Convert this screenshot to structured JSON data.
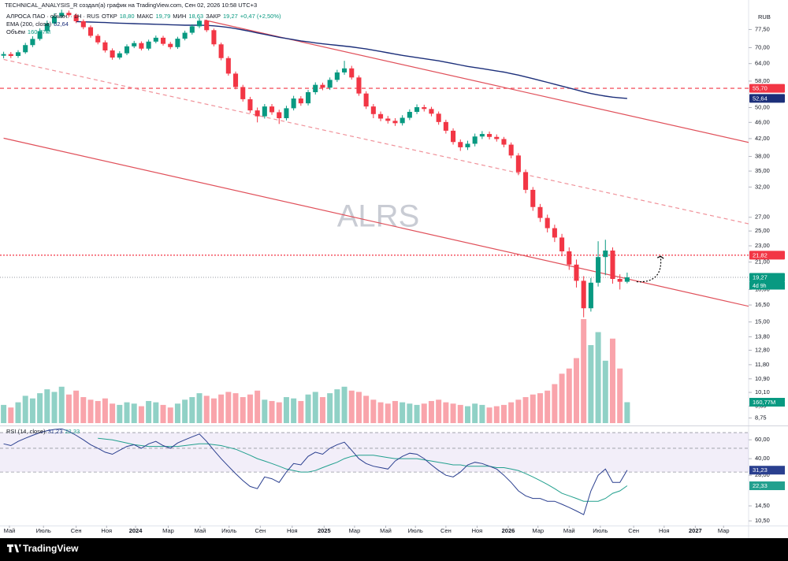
{
  "header": "TECHNICAL_ANALYSIS_R создал(а) график на TradingView.com, Сен 02, 2026 10:58 UTC+3",
  "footer": "TradingView",
  "chart_data": {
    "type": "candlestick",
    "symbol_legend": "АЛРОСА ПАО · обыкн. · 1Н · RUS",
    "ohlc_legend": [
      {
        "key": "ОТКР",
        "value": 18.8,
        "label": "18,80"
      },
      {
        "key": "МАКС",
        "value": 19.79,
        "label": "19,79"
      },
      {
        "key": "МИН",
        "value": 18.63,
        "label": "18,63"
      },
      {
        "key": "ЗАКР",
        "value": 19.27,
        "label": "19,27"
      }
    ],
    "change": "+0,47 (+2,50%)",
    "watermark": "ALRS",
    "currency": "RUB",
    "xlim": [
      -0.5,
      102.75
    ],
    "xticks": [
      {
        "value": 0.8,
        "label": "Май"
      },
      {
        "value": 5.5,
        "label": "Июль"
      },
      {
        "value": 10.0,
        "label": "Сен"
      },
      {
        "value": 14.2,
        "label": "Ноя"
      },
      {
        "value": 18.2,
        "label": "2024"
      },
      {
        "value": 22.7,
        "label": "Мар"
      },
      {
        "value": 27.1,
        "label": "Май"
      },
      {
        "value": 31.1,
        "label": "Июль"
      },
      {
        "value": 35.4,
        "label": "Сен"
      },
      {
        "value": 39.8,
        "label": "Ноя"
      },
      {
        "value": 44.2,
        "label": "2025"
      },
      {
        "value": 48.4,
        "label": "Мар"
      },
      {
        "value": 52.7,
        "label": "Май"
      },
      {
        "value": 56.8,
        "label": "Июль"
      },
      {
        "value": 61.0,
        "label": "Сен"
      },
      {
        "value": 65.3,
        "label": "Ноя"
      },
      {
        "value": 69.6,
        "label": "2026"
      },
      {
        "value": 73.7,
        "label": "Мар"
      },
      {
        "value": 78.0,
        "label": "Май"
      },
      {
        "value": 82.3,
        "label": "Июль"
      },
      {
        "value": 86.9,
        "label": "Сен"
      },
      {
        "value": 91.1,
        "label": "Ноя"
      },
      {
        "value": 95.4,
        "label": "2027"
      },
      {
        "value": 99.3,
        "label": "Мар"
      }
    ],
    "ylim": [
      8.5,
      87.5
    ],
    "log_scale": true,
    "yticks": [
      {
        "value": 77.5,
        "label": "77,50"
      },
      {
        "value": 70,
        "label": "70,00"
      },
      {
        "value": 64,
        "label": "64,00"
      },
      {
        "value": 58,
        "label": "58,00"
      },
      {
        "value": 50,
        "label": "50,00"
      },
      {
        "value": 46,
        "label": "46,00"
      },
      {
        "value": 42,
        "label": "42,00"
      },
      {
        "value": 38,
        "label": "38,00"
      },
      {
        "value": 35,
        "label": "35,00"
      },
      {
        "value": 32,
        "label": "32,00"
      },
      {
        "value": 27,
        "label": "27,00"
      },
      {
        "value": 25,
        "label": "25,00"
      },
      {
        "value": 23,
        "label": "23,00"
      },
      {
        "value": 21,
        "label": "21,00"
      },
      {
        "value": 18,
        "label": "18,00"
      },
      {
        "value": 16.5,
        "label": "16,50"
      },
      {
        "value": 15,
        "label": "15,00"
      },
      {
        "value": 13.8,
        "label": "13,80"
      },
      {
        "value": 12.8,
        "label": "12,80"
      },
      {
        "value": 11.8,
        "label": "11,80"
      },
      {
        "value": 10.9,
        "label": "10,90"
      },
      {
        "value": 10.1,
        "label": "10,10"
      },
      {
        "value": 9.35,
        "label": "9,35"
      },
      {
        "value": 8.75,
        "label": "8,75"
      }
    ],
    "up_color": "#089981",
    "down_color": "#f23645",
    "open": [
      66.9,
      67.5,
      66.8,
      68.2,
      71.0,
      73.5,
      76.8,
      80.2,
      83.5,
      85.1,
      84.0,
      81.2,
      78.5,
      74.8,
      72.1,
      68.9,
      66.2,
      67.8,
      70.5,
      71.8,
      69.6,
      72.4,
      74.0,
      71.5,
      70.2,
      73.6,
      76.1,
      78.9,
      81.4,
      77.2,
      71.3,
      66.0,
      60.5,
      56.1,
      52.4,
      49.2,
      47.6,
      50.3,
      48.7,
      47.1,
      49.8,
      52.6,
      51.2,
      54.5,
      56.8,
      55.9,
      58.4,
      60.9,
      62.3,
      59.2,
      54.1,
      50.3,
      48.2,
      47.0,
      46.4,
      45.8,
      47.2,
      48.8,
      50.1,
      49.6,
      48.3,
      46.1,
      43.9,
      41.2,
      40.0,
      40.8,
      42.5,
      43.1,
      42.4,
      41.9,
      40.6,
      38.2,
      34.8,
      31.5,
      28.6,
      26.9,
      25.4,
      24.1,
      22.3,
      20.7,
      18.9,
      16.2,
      18.7,
      21.6,
      22.4,
      19.1,
      18.8
    ],
    "high": [
      68.4,
      68.3,
      69.0,
      71.9,
      74.6,
      78.0,
      81.5,
      84.9,
      86.6,
      86.2,
      84.8,
      82.0,
      79.3,
      75.6,
      72.9,
      69.7,
      68.6,
      71.3,
      72.7,
      72.5,
      73.2,
      74.9,
      74.8,
      72.3,
      74.4,
      77.0,
      79.8,
      82.6,
      81.9,
      77.9,
      72.0,
      66.7,
      61.2,
      56.8,
      53.1,
      50.0,
      51.0,
      51.0,
      49.4,
      50.5,
      53.4,
      53.3,
      55.2,
      57.6,
      57.5,
      59.2,
      61.8,
      65.0,
      63.2,
      59.9,
      54.8,
      51.0,
      48.9,
      47.7,
      47.1,
      47.9,
      49.5,
      50.9,
      50.8,
      50.2,
      48.9,
      46.7,
      44.5,
      41.8,
      41.5,
      43.2,
      43.8,
      43.7,
      43.0,
      42.4,
      41.1,
      38.7,
      35.3,
      32.0,
      29.1,
      27.4,
      25.9,
      24.6,
      22.8,
      21.3,
      19.4,
      19.2,
      23.6,
      23.8,
      22.8,
      19.6,
      19.79
    ],
    "low": [
      65.9,
      66.0,
      66.1,
      67.6,
      70.2,
      72.8,
      76.0,
      79.4,
      82.6,
      83.1,
      80.3,
      77.6,
      74.0,
      71.3,
      68.1,
      65.4,
      65.5,
      67.1,
      69.8,
      68.9,
      68.9,
      71.7,
      70.8,
      69.4,
      69.5,
      72.9,
      75.3,
      78.1,
      76.4,
      70.5,
      65.2,
      59.8,
      55.4,
      51.7,
      48.5,
      46.0,
      47.0,
      48.0,
      45.6,
      46.5,
      49.2,
      50.5,
      50.6,
      53.8,
      55.1,
      55.2,
      57.7,
      60.1,
      58.5,
      53.4,
      49.6,
      47.1,
      46.3,
      45.7,
      45.1,
      45.2,
      46.6,
      48.2,
      48.9,
      47.6,
      45.4,
      43.2,
      40.6,
      39.2,
      39.4,
      40.2,
      41.9,
      41.8,
      41.3,
      40.0,
      37.6,
      34.2,
      30.9,
      28.0,
      26.3,
      24.8,
      23.5,
      21.7,
      20.1,
      18.2,
      15.4,
      15.9,
      18.3,
      19.5,
      18.6,
      18.0,
      18.63
    ],
    "close": [
      67.5,
      66.8,
      68.2,
      71.0,
      73.5,
      76.8,
      80.2,
      83.5,
      85.1,
      84.0,
      81.2,
      78.5,
      74.8,
      72.1,
      68.9,
      66.2,
      67.8,
      70.5,
      71.8,
      69.6,
      72.4,
      74.0,
      71.5,
      70.2,
      73.6,
      76.1,
      78.9,
      81.4,
      77.2,
      71.3,
      66.0,
      60.5,
      56.1,
      52.4,
      49.2,
      47.6,
      50.3,
      48.7,
      47.1,
      49.8,
      52.6,
      51.2,
      54.5,
      56.8,
      55.9,
      58.4,
      60.9,
      62.3,
      59.2,
      54.1,
      50.3,
      48.2,
      47.0,
      46.4,
      45.8,
      47.2,
      48.8,
      50.1,
      49.6,
      48.3,
      46.1,
      43.9,
      41.2,
      40.0,
      40.8,
      42.5,
      43.1,
      42.4,
      41.9,
      40.6,
      38.2,
      34.8,
      31.5,
      28.6,
      26.9,
      25.4,
      24.1,
      22.3,
      20.7,
      18.9,
      16.2,
      18.7,
      21.6,
      22.4,
      19.1,
      18.8,
      19.27
    ],
    "last_price": {
      "value": 19.27,
      "label": "19,27",
      "countdown": "4d 9h"
    },
    "levels": [
      {
        "value": 55.7,
        "label": "55,70",
        "color": "#f23645",
        "style": "dashed"
      },
      {
        "value": 21.82,
        "label": "21,82",
        "color": "#f23645",
        "style": "dotted"
      }
    ],
    "trendlines": [
      {
        "points": [
          [
            27.7,
            81.7
          ],
          [
            103.3,
            40.9
          ]
        ],
        "color": "#e0505a",
        "style": "solid"
      },
      {
        "points": [
          [
            0,
            42.1
          ],
          [
            103.3,
            16.3
          ]
        ],
        "color": "#e0505a",
        "style": "solid"
      },
      {
        "points": [
          [
            0,
            65.5
          ],
          [
            103.3,
            25.9
          ]
        ],
        "color": "#f0929a",
        "style": "dashed"
      }
    ],
    "forecast_arrow": {
      "from": [
        87.3,
        18.8
      ],
      "to": [
        90.6,
        21.7
      ]
    },
    "ema": {
      "name": "EMA (200, close)",
      "color": "#1c2f7a",
      "last_label": "52,64",
      "values": [
        null,
        null,
        null,
        null,
        null,
        null,
        null,
        null,
        null,
        null,
        81.0,
        80.9,
        80.8,
        80.7,
        80.6,
        80.4,
        80.3,
        80.2,
        80.1,
        80.0,
        79.9,
        79.8,
        79.7,
        79.6,
        79.5,
        79.4,
        79.4,
        79.4,
        79.3,
        79.1,
        78.8,
        78.4,
        77.9,
        77.3,
        76.7,
        76.0,
        75.4,
        74.8,
        74.2,
        73.7,
        73.2,
        72.7,
        72.3,
        71.9,
        71.5,
        71.2,
        70.9,
        70.6,
        70.3,
        69.9,
        69.5,
        69.0,
        68.5,
        68.0,
        67.5,
        67.0,
        66.6,
        66.2,
        65.8,
        65.4,
        65.0,
        64.5,
        64.0,
        63.5,
        63.0,
        62.6,
        62.2,
        61.8,
        61.4,
        61.0,
        60.5,
        60.0,
        59.4,
        58.8,
        58.2,
        57.6,
        57.0,
        56.4,
        55.8,
        55.2,
        54.6,
        54.1,
        53.7,
        53.3,
        53.0,
        52.8,
        52.64
      ]
    },
    "volume": {
      "name": "Объём",
      "ylim": [
        0,
        800
      ],
      "last_label": "160,77M",
      "values": [
        140,
        120,
        160,
        210,
        190,
        230,
        260,
        240,
        280,
        220,
        250,
        200,
        180,
        170,
        190,
        150,
        140,
        160,
        150,
        130,
        170,
        160,
        140,
        120,
        150,
        180,
        200,
        230,
        210,
        190,
        220,
        240,
        230,
        200,
        220,
        250,
        180,
        170,
        160,
        200,
        190,
        170,
        220,
        240,
        200,
        230,
        260,
        280,
        250,
        240,
        210,
        180,
        160,
        150,
        170,
        160,
        150,
        140,
        150,
        170,
        180,
        160,
        150,
        140,
        130,
        150,
        140,
        120,
        130,
        140,
        160,
        180,
        200,
        220,
        230,
        250,
        300,
        380,
        420,
        500,
        800,
        600,
        700,
        480,
        650,
        420,
        160.77
      ]
    },
    "rsi": {
      "name": "RSI (14, close)",
      "color": "#2a3f8f",
      "last_label": "31,23",
      "ylim": [
        9.5,
        75
      ],
      "log_scale": true,
      "yticks": [
        {
          "value": 60,
          "label": "60,00"
        },
        {
          "value": 40,
          "label": "40,00"
        },
        {
          "value": 28,
          "label": "28,00"
        },
        {
          "value": 14.5,
          "label": "14,50"
        },
        {
          "value": 10.5,
          "label": "10,50"
        }
      ],
      "levels": [
        70,
        50,
        30
      ],
      "values": [
        55,
        53,
        58,
        62,
        66,
        70,
        73,
        75,
        76,
        72,
        66,
        60,
        54,
        50,
        46,
        44,
        48,
        52,
        54,
        50,
        55,
        58,
        53,
        50,
        56,
        60,
        64,
        68,
        58,
        48,
        40,
        34,
        29,
        25,
        22,
        21,
        27,
        26,
        24,
        30,
        36,
        35,
        42,
        46,
        44,
        50,
        54,
        57,
        48,
        40,
        36,
        34,
        33,
        32,
        38,
        42,
        45,
        44,
        40,
        35,
        31,
        28,
        27,
        30,
        35,
        37,
        36,
        34,
        32,
        28,
        24,
        20,
        18,
        17,
        17,
        16,
        16,
        15,
        14,
        13,
        12,
        20,
        28,
        32,
        24,
        24,
        31.23
      ],
      "ma": {
        "color": "#22a08e",
        "last_label": "22,33",
        "values": [
          null,
          null,
          null,
          null,
          null,
          null,
          null,
          null,
          null,
          null,
          null,
          null,
          null,
          62,
          61,
          60,
          58,
          56,
          54,
          53,
          52,
          52,
          52,
          52,
          52,
          53,
          54,
          55,
          55,
          54,
          53,
          51,
          49,
          46,
          43,
          40,
          38,
          36,
          34,
          32,
          31,
          30,
          30,
          31,
          33,
          35,
          37,
          40,
          42,
          43,
          43,
          43,
          42,
          41,
          40,
          40,
          40,
          40,
          39,
          38,
          37,
          36,
          35,
          35,
          34,
          34,
          34,
          34,
          33,
          33,
          32,
          31,
          29,
          27,
          25,
          23,
          21,
          19,
          18,
          17,
          16,
          16,
          16,
          17,
          19,
          20,
          22.33
        ]
      }
    }
  }
}
